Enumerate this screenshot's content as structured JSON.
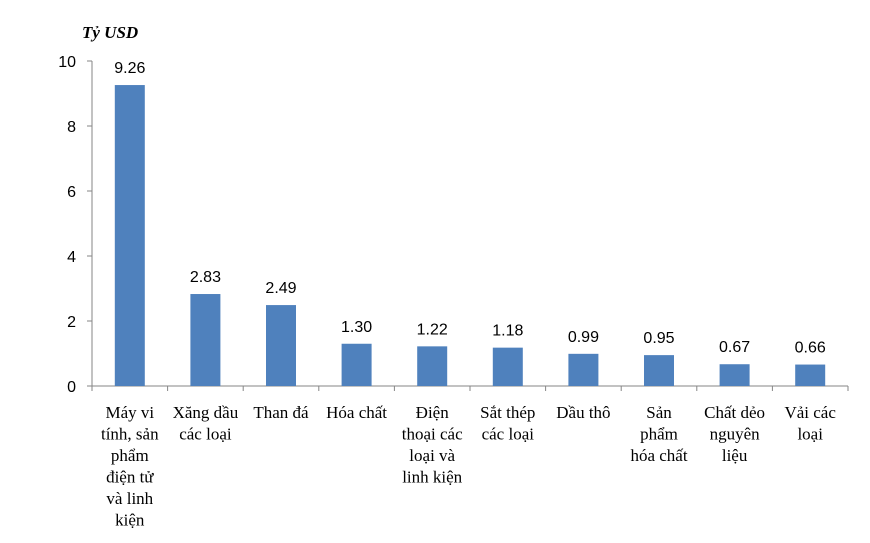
{
  "chart_data": {
    "type": "bar",
    "title": "",
    "unit_label": "Tỷ USD",
    "ylim": [
      0,
      10
    ],
    "yticks": [
      "0",
      "2",
      "4",
      "6",
      "8",
      "10"
    ],
    "grid": false,
    "legend": "none",
    "bar_color": "#4f81bd",
    "categories": [
      [
        "Máy vi",
        "tính, sản",
        "phẩm",
        "điện tử",
        "và linh",
        "kiện"
      ],
      [
        "Xăng dầu",
        "các loại"
      ],
      [
        "Than đá"
      ],
      [
        "Hóa chất"
      ],
      [
        "Điện",
        "thoại các",
        "loại và",
        "linh kiện"
      ],
      [
        "Sắt thép",
        "các loại"
      ],
      [
        "Dầu thô"
      ],
      [
        "Sản",
        "phẩm",
        "hóa chất"
      ],
      [
        "Chất dẻo",
        "nguyên",
        "liệu"
      ],
      [
        "Vải các",
        "loại"
      ]
    ],
    "values": [
      9.26,
      2.83,
      2.49,
      1.3,
      1.22,
      1.18,
      0.99,
      0.95,
      0.67,
      0.66
    ],
    "value_labels": [
      "9.26",
      "2.83",
      "2.49",
      "1.30",
      "1.22",
      "1.18",
      "0.99",
      "0.95",
      "0.67",
      "0.66"
    ]
  }
}
